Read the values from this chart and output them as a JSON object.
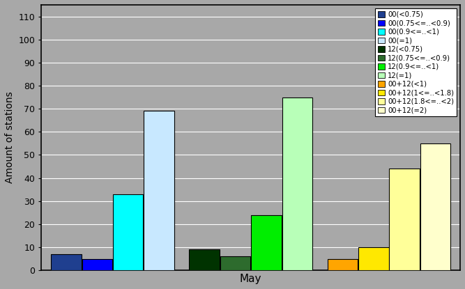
{
  "bars": [
    {
      "label": "00(<0.75)",
      "color": "#1F3F8F",
      "value": 7
    },
    {
      "label": "00(0.75<=..<0.9)",
      "color": "#0000FF",
      "value": 5
    },
    {
      "label": "00(0.9<=..<1)",
      "color": "#00FFFF",
      "value": 33
    },
    {
      "label": "00(=1)",
      "color": "#C8E8FF",
      "value": 69
    },
    {
      "label": "12(<0.75)",
      "color": "#003300",
      "value": 9
    },
    {
      "label": "12(0.75<=..<0.9)",
      "color": "#2D6B2D",
      "value": 6
    },
    {
      "label": "12(0.9<=..<1)",
      "color": "#00EE00",
      "value": 24
    },
    {
      "label": "12(=1)",
      "color": "#B8FFB8",
      "value": 75
    },
    {
      "label": "00+12(<1)",
      "color": "#FFA500",
      "value": 5
    },
    {
      "label": "00+12(1<=..<1.8)",
      "color": "#FFE800",
      "value": 10
    },
    {
      "label": "00+12(1.8<=..<2)",
      "color": "#FFFF99",
      "value": 44
    },
    {
      "label": "00+12(=2)",
      "color": "#FFFFCC",
      "value": 55
    }
  ],
  "ylabel": "Amount of stations",
  "xlabel": "May",
  "ylim": [
    0,
    115
  ],
  "yticks": [
    0,
    10,
    20,
    30,
    40,
    50,
    60,
    70,
    80,
    90,
    100,
    110
  ],
  "plot_bg_color": "#A8A8A8",
  "fig_bg_color": "#A8A8A8",
  "bar_width": 0.85
}
